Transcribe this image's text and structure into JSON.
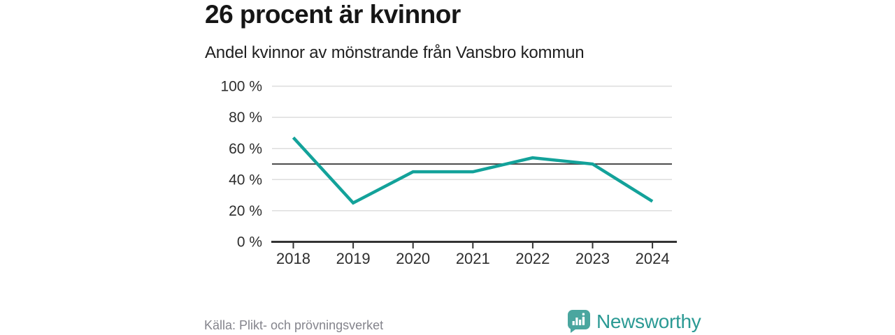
{
  "header": {
    "title": "26 procent är kvinnor",
    "subtitle": "Andel kvinnor av mönstrande från Vansbro kommun"
  },
  "chart_data": {
    "type": "line",
    "title": "26 procent är kvinnor",
    "subtitle": "Andel kvinnor av mönstrande från Vansbro kommun",
    "categories": [
      "2018",
      "2019",
      "2020",
      "2021",
      "2022",
      "2023",
      "2024"
    ],
    "values": [
      67,
      25,
      45,
      45,
      54,
      50,
      26
    ],
    "unit": "%",
    "ylim": [
      0,
      100
    ],
    "yticks": [
      0,
      20,
      40,
      60,
      80,
      100
    ],
    "ytick_labels": [
      "0 %",
      "20 %",
      "40 %",
      "60 %",
      "80 %",
      "100 %"
    ],
    "reference_line": 50,
    "grid": true,
    "legend": "none",
    "line_color": "#13a29a",
    "reference_line_color": "#4d4d4d",
    "gridline_color": "#dddddd",
    "axis_color": "#333333"
  },
  "footer": {
    "source": "Källa: Plikt- och prövningsverket",
    "brand": "Newsworthy",
    "logo_icon": "bar-chart-speech-bubble-icon",
    "brand_color": "#2b9a94",
    "logo_fill": "#4aa69f"
  }
}
